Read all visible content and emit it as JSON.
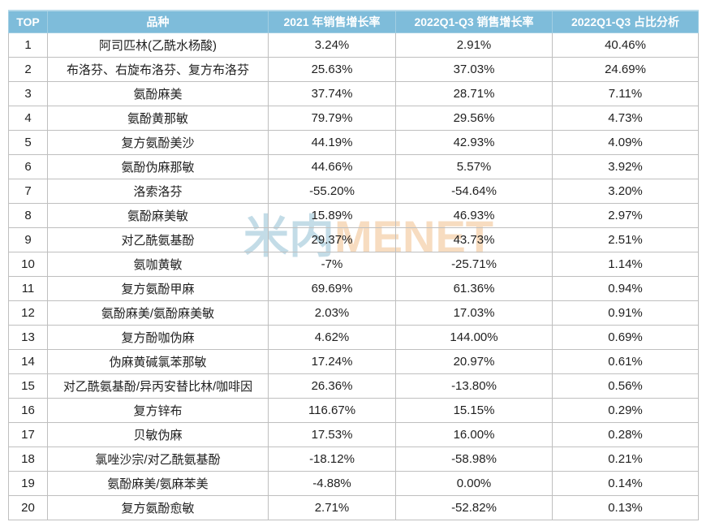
{
  "watermark": {
    "part_cn": "米内",
    "part_en": "MENET"
  },
  "colors": {
    "header_bg": "#7ebcda",
    "header_text": "#ffffff",
    "cell_border": "#bfbfbf",
    "body_text": "#1f1f1f",
    "watermark_cn": "#c3dce7",
    "watermark_en": "#f7dcc0"
  },
  "table": {
    "columns": [
      "TOP",
      "品种",
      "2021 年销售增长率",
      "2022Q1-Q3 销售增长率",
      "2022Q1-Q3 占比分析"
    ],
    "rows": [
      {
        "top": "1",
        "name": "阿司匹林(乙酰水杨酸)",
        "g2021": "3.24%",
        "g2022": "2.91%",
        "share": "40.46%"
      },
      {
        "top": "2",
        "name": "布洛芬、右旋布洛芬、复方布洛芬",
        "g2021": "25.63%",
        "g2022": "37.03%",
        "share": "24.69%"
      },
      {
        "top": "3",
        "name": "氨酚麻美",
        "g2021": "37.74%",
        "g2022": "28.71%",
        "share": "7.11%"
      },
      {
        "top": "4",
        "name": "氨酚黄那敏",
        "g2021": "79.79%",
        "g2022": "29.56%",
        "share": "4.73%"
      },
      {
        "top": "5",
        "name": "复方氨酚美沙",
        "g2021": "44.19%",
        "g2022": "42.93%",
        "share": "4.09%"
      },
      {
        "top": "6",
        "name": "氨酚伪麻那敏",
        "g2021": "44.66%",
        "g2022": "5.57%",
        "share": "3.92%"
      },
      {
        "top": "7",
        "name": "洛索洛芬",
        "g2021": "-55.20%",
        "g2022": "-54.64%",
        "share": "3.20%"
      },
      {
        "top": "8",
        "name": "氨酚麻美敏",
        "g2021": "15.89%",
        "g2022": "46.93%",
        "share": "2.97%"
      },
      {
        "top": "9",
        "name": "对乙酰氨基酚",
        "g2021": "29.37%",
        "g2022": "43.73%",
        "share": "2.51%"
      },
      {
        "top": "10",
        "name": "氨咖黄敏",
        "g2021": "-7%",
        "g2022": "-25.71%",
        "share": "1.14%"
      },
      {
        "top": "11",
        "name": "复方氨酚甲麻",
        "g2021": "69.69%",
        "g2022": "61.36%",
        "share": "0.94%"
      },
      {
        "top": "12",
        "name": "氨酚麻美/氨酚麻美敏",
        "g2021": "2.03%",
        "g2022": "17.03%",
        "share": "0.91%"
      },
      {
        "top": "13",
        "name": "复方酚咖伪麻",
        "g2021": "4.62%",
        "g2022": "144.00%",
        "share": "0.69%"
      },
      {
        "top": "14",
        "name": "伪麻黄碱氯苯那敏",
        "g2021": "17.24%",
        "g2022": "20.97%",
        "share": "0.61%"
      },
      {
        "top": "15",
        "name": "对乙酰氨基酚/异丙安替比林/咖啡因",
        "g2021": "26.36%",
        "g2022": "-13.80%",
        "share": "0.56%"
      },
      {
        "top": "16",
        "name": "复方锌布",
        "g2021": "116.67%",
        "g2022": "15.15%",
        "share": "0.29%"
      },
      {
        "top": "17",
        "name": "贝敏伪麻",
        "g2021": "17.53%",
        "g2022": "16.00%",
        "share": "0.28%"
      },
      {
        "top": "18",
        "name": "氯唑沙宗/对乙酰氨基酚",
        "g2021": "-18.12%",
        "g2022": "-58.98%",
        "share": "0.21%"
      },
      {
        "top": "19",
        "name": "氨酚麻美/氨麻苯美",
        "g2021": "-4.88%",
        "g2022": "0.00%",
        "share": "0.14%"
      },
      {
        "top": "20",
        "name": "复方氨酚愈敏",
        "g2021": "2.71%",
        "g2022": "-52.82%",
        "share": "0.13%"
      }
    ]
  },
  "chart_data": {
    "type": "table",
    "title": "",
    "columns": [
      "TOP",
      "品种",
      "2021 年销售增长率",
      "2022Q1-Q3 销售增长率",
      "2022Q1-Q3 占比分析"
    ],
    "categories": [
      "阿司匹林(乙酰水杨酸)",
      "布洛芬、右旋布洛芬、复方布洛芬",
      "氨酚麻美",
      "氨酚黄那敏",
      "复方氨酚美沙",
      "氨酚伪麻那敏",
      "洛索洛芬",
      "氨酚麻美敏",
      "对乙酰氨基酚",
      "氨咖黄敏",
      "复方氨酚甲麻",
      "氨酚麻美/氨酚麻美敏",
      "复方酚咖伪麻",
      "伪麻黄碱氯苯那敏",
      "对乙酰氨基酚/异丙安替比林/咖啡因",
      "复方锌布",
      "贝敏伪麻",
      "氯唑沙宗/对乙酰氨基酚",
      "氨酚麻美/氨麻苯美",
      "复方氨酚愈敏"
    ],
    "series": [
      {
        "name": "2021 年销售增长率 (%)",
        "values": [
          3.24,
          25.63,
          37.74,
          79.79,
          44.19,
          44.66,
          -55.2,
          15.89,
          29.37,
          -7,
          69.69,
          2.03,
          4.62,
          17.24,
          26.36,
          116.67,
          17.53,
          -18.12,
          -4.88,
          2.71
        ]
      },
      {
        "name": "2022Q1-Q3 销售增长率 (%)",
        "values": [
          2.91,
          37.03,
          28.71,
          29.56,
          42.93,
          5.57,
          -54.64,
          46.93,
          43.73,
          -25.71,
          61.36,
          17.03,
          144.0,
          20.97,
          -13.8,
          15.15,
          16.0,
          -58.98,
          0.0,
          -52.82
        ]
      },
      {
        "name": "2022Q1-Q3 占比分析 (%)",
        "values": [
          40.46,
          24.69,
          7.11,
          4.73,
          4.09,
          3.92,
          3.2,
          2.97,
          2.51,
          1.14,
          0.94,
          0.91,
          0.69,
          0.61,
          0.56,
          0.29,
          0.28,
          0.21,
          0.14,
          0.13
        ]
      }
    ]
  }
}
